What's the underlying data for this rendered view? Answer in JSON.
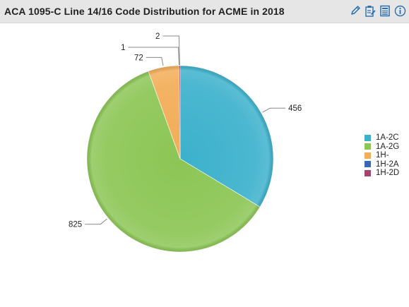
{
  "header": {
    "title": "ACA 1095-C Line 14/16 Code Distribution for ACME in 2018",
    "tools": [
      {
        "name": "edit",
        "icon": "pencil-icon"
      },
      {
        "name": "notes",
        "icon": "clipboard-edit-icon"
      },
      {
        "name": "export",
        "icon": "document-icon"
      },
      {
        "name": "info",
        "icon": "info-icon"
      }
    ],
    "tool_color": "#2a6fb0"
  },
  "chart_data": {
    "type": "pie",
    "title": "ACA 1095-C Line 14/16 Code Distribution for ACME in 2018",
    "categories": [
      "1A-2C",
      "1A-2G",
      "1H-",
      "1H-2A",
      "1H-2D"
    ],
    "values": [
      456,
      825,
      72,
      1,
      2
    ],
    "colors": [
      "#3cb1cc",
      "#8cc655",
      "#f2ad57",
      "#3a67b5",
      "#a0456e"
    ],
    "data_labels": [
      "456",
      "825",
      "72",
      "1",
      "2"
    ],
    "start_angle_deg": 0,
    "direction": "clockwise",
    "legend": {
      "position": "right"
    }
  }
}
